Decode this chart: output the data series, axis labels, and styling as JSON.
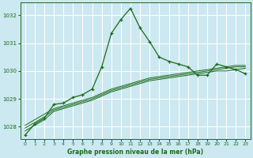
{
  "background_color": "#cce8f0",
  "grid_color": "#ffffff",
  "line_color": "#1a6b1a",
  "xlabel": "Graphe pression niveau de la mer (hPa)",
  "ylim": [
    1027.55,
    1032.45
  ],
  "yticks": [
    1028,
    1029,
    1030,
    1031,
    1032
  ],
  "xlim": [
    -0.5,
    23.5
  ],
  "xticks": [
    0,
    1,
    2,
    3,
    4,
    5,
    6,
    7,
    8,
    9,
    10,
    11,
    12,
    13,
    14,
    15,
    16,
    17,
    18,
    19,
    20,
    21,
    22,
    23
  ],
  "series1": [
    1027.7,
    1028.1,
    1028.3,
    1028.8,
    1028.85,
    1029.05,
    1029.15,
    1029.35,
    1030.15,
    1031.35,
    1031.85,
    1032.25,
    1031.55,
    1031.05,
    1030.5,
    1030.35,
    1030.25,
    1030.15,
    1029.85,
    1029.85,
    1030.25,
    1030.15,
    1030.05,
    1029.9
  ],
  "series2": [
    1027.85,
    1028.05,
    1028.25,
    1028.55,
    1028.65,
    1028.75,
    1028.85,
    1028.95,
    1029.1,
    1029.25,
    1029.35,
    1029.45,
    1029.55,
    1029.65,
    1029.7,
    1029.75,
    1029.8,
    1029.85,
    1029.9,
    1029.95,
    1030.0,
    1030.0,
    1030.05,
    1030.1
  ],
  "series3": [
    1027.95,
    1028.15,
    1028.35,
    1028.6,
    1028.7,
    1028.8,
    1028.9,
    1029.0,
    1029.15,
    1029.3,
    1029.4,
    1029.5,
    1029.6,
    1029.7,
    1029.75,
    1029.8,
    1029.85,
    1029.9,
    1029.95,
    1030.0,
    1030.05,
    1030.1,
    1030.15,
    1030.15
  ],
  "series4": [
    1028.05,
    1028.25,
    1028.45,
    1028.65,
    1028.75,
    1028.85,
    1028.95,
    1029.05,
    1029.2,
    1029.35,
    1029.45,
    1029.55,
    1029.65,
    1029.75,
    1029.8,
    1029.85,
    1029.9,
    1029.95,
    1030.0,
    1030.05,
    1030.1,
    1030.15,
    1030.2,
    1030.2
  ]
}
